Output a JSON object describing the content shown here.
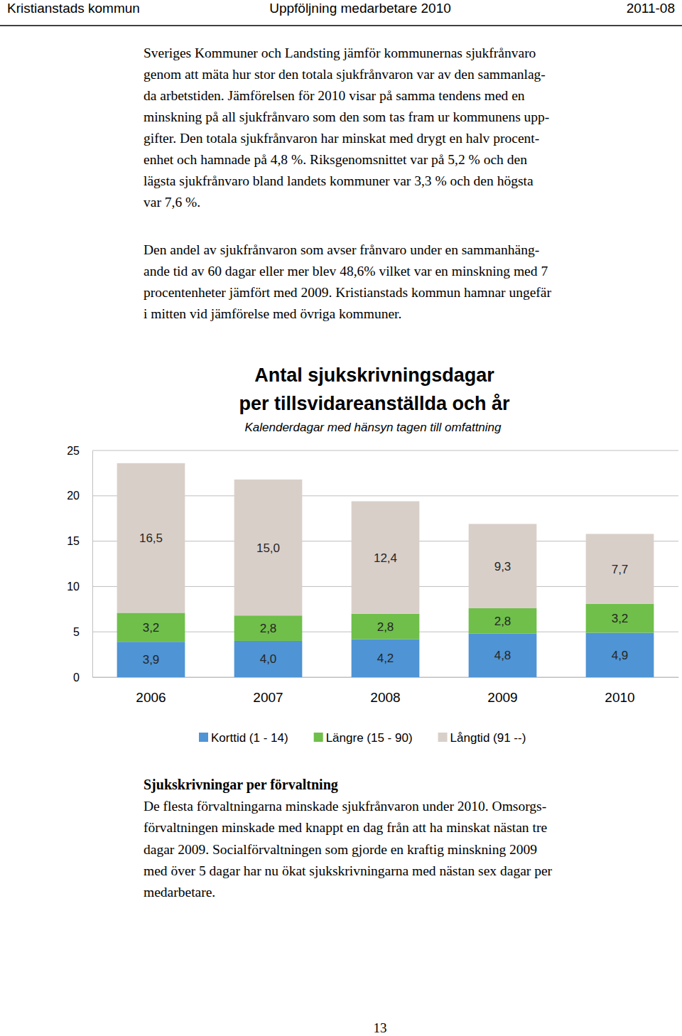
{
  "header": {
    "left": "Kristianstads kommun",
    "center": "Uppföljning medarbetare 2010",
    "right": "2011-08"
  },
  "paragraphs": [
    {
      "lines": [
        "Sveriges Kommuner och Landsting jämför kommunernas sjukfrånvaro",
        "genom att mäta hur stor den totala sjukfrånvaron var av den sammanlag-",
        "da arbetstiden. Jämförelsen för 2010 visar på samma tendens med en",
        "minskning på all sjukfrånvaro som den som tas fram ur kommunens upp-",
        "gifter. Den totala sjukfrånvaron har minskat med drygt en halv procent-",
        "enhet och hamnade på 4,8 %. Riksgenomsnittet var på 5,2 % och den",
        "lägsta sjukfrånvaro bland landets kommuner var 3,3 % och den högsta",
        "var 7,6 %."
      ]
    },
    {
      "lines": [
        "Den andel av sjukfrånvaron som avser frånvaro under en sammanhäng-",
        "ande tid av 60 dagar eller mer blev 48,6% vilket var en minskning med 7",
        "procentenheter jämfört med 2009. Kristianstads kommun hamnar ungefär",
        "i mitten vid jämförelse med övriga kommuner."
      ]
    }
  ],
  "chart_data": {
    "type": "bar",
    "title": [
      "Antal sjukskrivningsdagar",
      "per tillsvidareanställda och år"
    ],
    "subtitle": "Kalenderdagar med hänsyn tagen till omfattning",
    "categories": [
      "2006",
      "2007",
      "2008",
      "2009",
      "2010"
    ],
    "series": [
      {
        "name": "Korttid (1 - 14)",
        "color": "#4f94d4",
        "values": [
          3.9,
          4.0,
          4.2,
          4.8,
          4.9
        ],
        "value_labels": [
          "3,9",
          "4,0",
          "4,2",
          "4,8",
          "4,9"
        ]
      },
      {
        "name": "Längre (15 - 90)",
        "color": "#6fbf4a",
        "values": [
          3.2,
          2.8,
          2.8,
          2.8,
          3.2
        ],
        "value_labels": [
          "3,2",
          "2,8",
          "2,8",
          "2,8",
          "3,2"
        ]
      },
      {
        "name": "Långtid (91 --)",
        "color": "#d9cfc9",
        "values": [
          16.5,
          15.0,
          12.4,
          9.3,
          7.7
        ],
        "value_labels": [
          "16,5",
          "15,0",
          "12,4",
          "9,3",
          "7,7"
        ]
      }
    ],
    "ylim": [
      0,
      25
    ],
    "yticks": [
      0,
      5,
      10,
      15,
      20,
      25
    ],
    "stacked": true,
    "data_labels": true,
    "legend": "bottom",
    "grid": true
  },
  "section": {
    "heading": "Sjukskrivningar per förvaltning",
    "lines": [
      "De flesta förvaltningarna minskade sjukfrånvaron under 2010. Omsorgs-",
      "förvaltningen minskade med knappt en dag från att ha minskat nästan tre",
      "dagar 2009. Socialförvaltningen som gjorde en kraftig minskning 2009",
      "med över 5 dagar har nu ökat sjukskrivningarna med nästan sex dagar per",
      "medarbetare."
    ]
  },
  "page_number": "13"
}
